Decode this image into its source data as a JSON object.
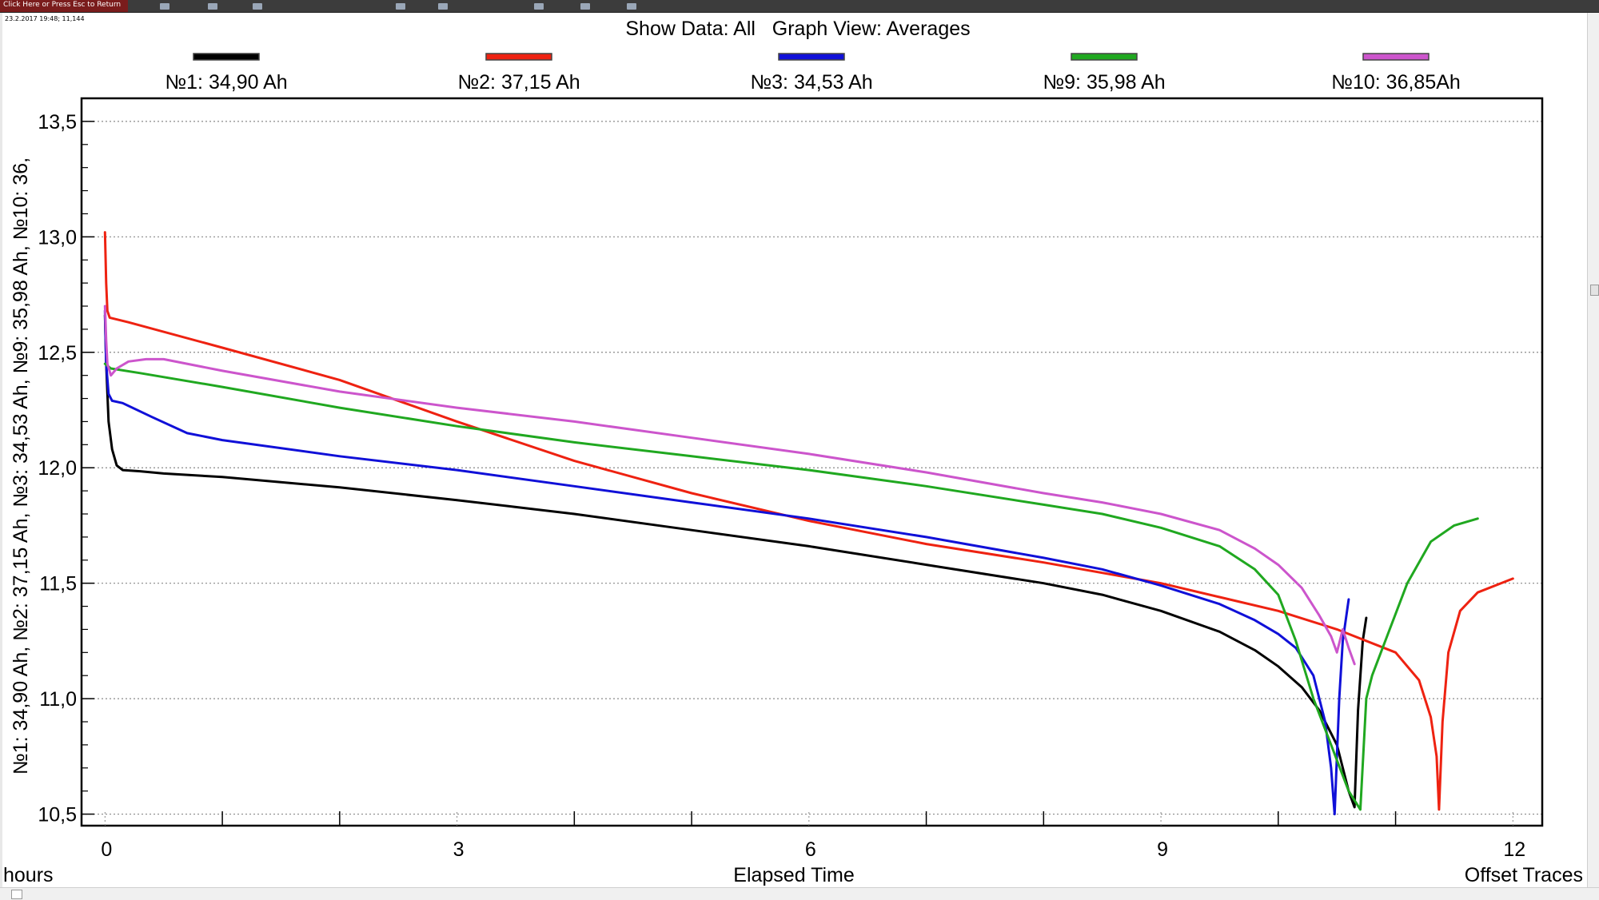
{
  "window": {
    "title_bar_text": "Click Here or Press Esc to Return",
    "status_time": "23.2.2017 19:48; 11,144"
  },
  "colors": {
    "background": "#ffffff",
    "grid": "#888888",
    "series_1": "#000000",
    "series_2": "#ee2211",
    "series_3": "#1010d8",
    "series_4": "#20a820",
    "series_5": "#cc55cc"
  },
  "chart_data": {
    "type": "line",
    "title": "Show Data: All   Graph View: Averages",
    "xlabel": "Elapsed Time",
    "x_unit_label": "hours",
    "x_corner_label": "Offset Traces",
    "ylabel": "№1: 34,90 Ah, №2: 37,15 Ah, №3: 34,53 Ah, №9: 35,98 Ah, №10: 36,",
    "xlim": [
      -0.2,
      12.25
    ],
    "ylim": [
      10.45,
      13.6
    ],
    "x_ticks": [
      0,
      3,
      6,
      9,
      12
    ],
    "x_tick_labels": [
      "0",
      "3",
      "6",
      "9",
      "12"
    ],
    "y_ticks": [
      10.5,
      11.0,
      11.5,
      12.0,
      12.5,
      13.0,
      13.5
    ],
    "y_tick_labels": [
      "10,5",
      "11,0",
      "11,5",
      "12,0",
      "12,5",
      "13,0",
      "13,5"
    ],
    "grid": "horizontal dotted",
    "legend_position": "top",
    "series": [
      {
        "name": "№1: 34,90 Ah",
        "color": "#000000",
        "points": [
          [
            0,
            12.66
          ],
          [
            0.01,
            12.45
          ],
          [
            0.03,
            12.2
          ],
          [
            0.06,
            12.08
          ],
          [
            0.1,
            12.01
          ],
          [
            0.15,
            11.99
          ],
          [
            0.3,
            11.985
          ],
          [
            0.5,
            11.975
          ],
          [
            1,
            11.96
          ],
          [
            2,
            11.915
          ],
          [
            3,
            11.86
          ],
          [
            4,
            11.8
          ],
          [
            5,
            11.73
          ],
          [
            6,
            11.66
          ],
          [
            7,
            11.58
          ],
          [
            8,
            11.5
          ],
          [
            8.5,
            11.45
          ],
          [
            9,
            11.38
          ],
          [
            9.5,
            11.29
          ],
          [
            9.8,
            11.21
          ],
          [
            10,
            11.14
          ],
          [
            10.2,
            11.05
          ],
          [
            10.35,
            10.95
          ],
          [
            10.5,
            10.8
          ],
          [
            10.6,
            10.6
          ],
          [
            10.65,
            10.53
          ],
          [
            10.68,
            10.95
          ],
          [
            10.72,
            11.25
          ],
          [
            10.75,
            11.35
          ]
        ]
      },
      {
        "name": "№2: 37,15 Ah",
        "color": "#ee2211",
        "points": [
          [
            0,
            13.02
          ],
          [
            0.01,
            12.8
          ],
          [
            0.02,
            12.68
          ],
          [
            0.04,
            12.65
          ],
          [
            0.2,
            12.63
          ],
          [
            1,
            12.52
          ],
          [
            2,
            12.38
          ],
          [
            3,
            12.2
          ],
          [
            4,
            12.03
          ],
          [
            5,
            11.89
          ],
          [
            6,
            11.77
          ],
          [
            7,
            11.67
          ],
          [
            8,
            11.59
          ],
          [
            9,
            11.5
          ],
          [
            9.5,
            11.44
          ],
          [
            10,
            11.38
          ],
          [
            10.5,
            11.3
          ],
          [
            11,
            11.2
          ],
          [
            11.2,
            11.08
          ],
          [
            11.3,
            10.92
          ],
          [
            11.35,
            10.75
          ],
          [
            11.37,
            10.52
          ],
          [
            11.4,
            10.9
          ],
          [
            11.45,
            11.2
          ],
          [
            11.55,
            11.38
          ],
          [
            11.7,
            11.46
          ],
          [
            12,
            11.52
          ]
        ]
      },
      {
        "name": "№3: 34,53 Ah",
        "color": "#1010d8",
        "points": [
          [
            0,
            12.68
          ],
          [
            0.01,
            12.45
          ],
          [
            0.03,
            12.32
          ],
          [
            0.06,
            12.29
          ],
          [
            0.15,
            12.28
          ],
          [
            0.4,
            12.22
          ],
          [
            0.7,
            12.15
          ],
          [
            1,
            12.12
          ],
          [
            2,
            12.05
          ],
          [
            3,
            11.99
          ],
          [
            4,
            11.92
          ],
          [
            5,
            11.85
          ],
          [
            6,
            11.78
          ],
          [
            7,
            11.7
          ],
          [
            8,
            11.61
          ],
          [
            8.5,
            11.56
          ],
          [
            9,
            11.49
          ],
          [
            9.5,
            11.41
          ],
          [
            9.8,
            11.34
          ],
          [
            10,
            11.28
          ],
          [
            10.15,
            11.22
          ],
          [
            10.3,
            11.1
          ],
          [
            10.4,
            10.9
          ],
          [
            10.45,
            10.7
          ],
          [
            10.48,
            10.5
          ],
          [
            10.52,
            11.0
          ],
          [
            10.55,
            11.25
          ],
          [
            10.6,
            11.43
          ]
        ]
      },
      {
        "name": "№9: 35,98 Ah",
        "color": "#20a820",
        "points": [
          [
            0,
            12.45
          ],
          [
            0.05,
            12.43
          ],
          [
            0.3,
            12.41
          ],
          [
            1,
            12.35
          ],
          [
            2,
            12.26
          ],
          [
            3,
            12.18
          ],
          [
            4,
            12.11
          ],
          [
            5,
            12.05
          ],
          [
            6,
            11.99
          ],
          [
            7,
            11.92
          ],
          [
            8,
            11.84
          ],
          [
            8.5,
            11.8
          ],
          [
            9,
            11.74
          ],
          [
            9.5,
            11.66
          ],
          [
            9.8,
            11.56
          ],
          [
            10,
            11.45
          ],
          [
            10.15,
            11.25
          ],
          [
            10.3,
            11.0
          ],
          [
            10.45,
            10.8
          ],
          [
            10.6,
            10.6
          ],
          [
            10.7,
            10.52
          ],
          [
            10.75,
            11.0
          ],
          [
            10.8,
            11.1
          ],
          [
            10.95,
            11.3
          ],
          [
            11.1,
            11.5
          ],
          [
            11.3,
            11.68
          ],
          [
            11.5,
            11.75
          ],
          [
            11.7,
            11.78
          ]
        ]
      },
      {
        "name": "№10: 36,85Ah",
        "color": "#cc55cc",
        "points": [
          [
            0,
            12.7
          ],
          [
            0.01,
            12.55
          ],
          [
            0.02,
            12.45
          ],
          [
            0.05,
            12.4
          ],
          [
            0.1,
            12.43
          ],
          [
            0.2,
            12.46
          ],
          [
            0.35,
            12.47
          ],
          [
            0.5,
            12.47
          ],
          [
            1,
            12.42
          ],
          [
            2,
            12.33
          ],
          [
            3,
            12.26
          ],
          [
            4,
            12.2
          ],
          [
            5,
            12.13
          ],
          [
            6,
            12.06
          ],
          [
            7,
            11.98
          ],
          [
            8,
            11.89
          ],
          [
            8.5,
            11.85
          ],
          [
            9,
            11.8
          ],
          [
            9.5,
            11.73
          ],
          [
            9.8,
            11.65
          ],
          [
            10,
            11.58
          ],
          [
            10.2,
            11.48
          ],
          [
            10.35,
            11.36
          ],
          [
            10.45,
            11.27
          ],
          [
            10.5,
            11.2
          ],
          [
            10.55,
            11.3
          ],
          [
            10.6,
            11.22
          ],
          [
            10.65,
            11.15
          ]
        ]
      }
    ]
  }
}
